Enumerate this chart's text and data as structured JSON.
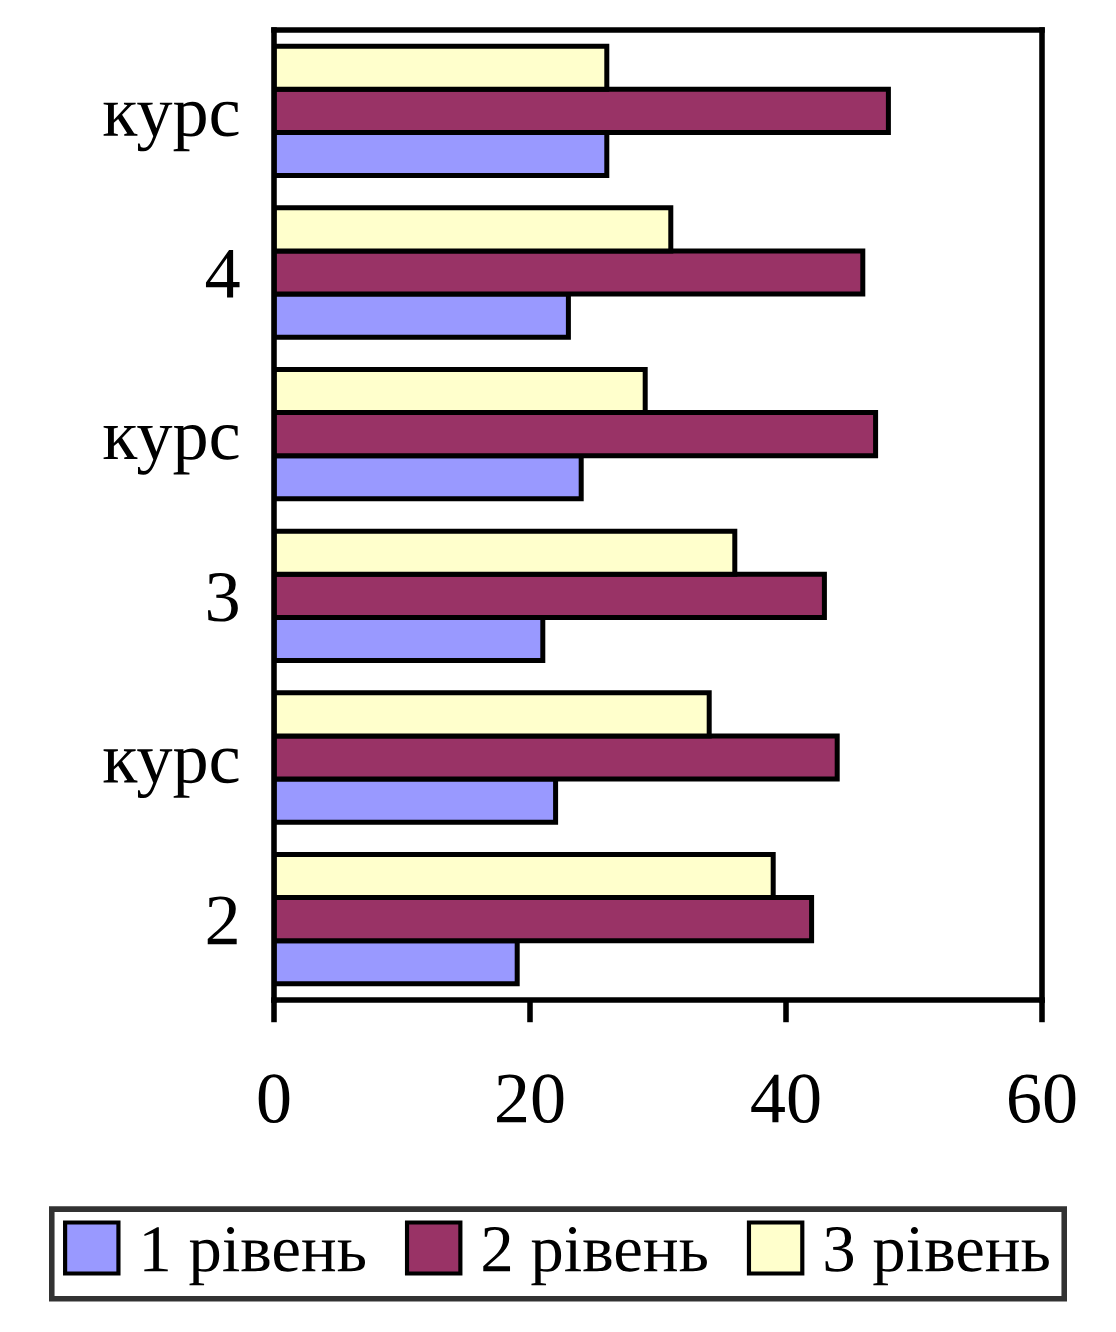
{
  "chart_data": {
    "type": "bar",
    "orientation": "horizontal",
    "categories": [
      "курс",
      "4",
      "курс",
      "3",
      "курс",
      "2"
    ],
    "series": [
      {
        "name": "1 рівень",
        "color": "#9999ff",
        "values": [
          26,
          23,
          24,
          21,
          22,
          19
        ]
      },
      {
        "name": "2 рівень",
        "color": "#993366",
        "values": [
          48,
          46,
          47,
          43,
          44,
          42
        ]
      },
      {
        "name": "3 рівень",
        "color": "#ffffcc",
        "values": [
          26,
          31,
          29,
          36,
          34,
          39
        ]
      }
    ],
    "xlim": [
      0,
      60
    ],
    "xticks": [
      0,
      20,
      40,
      60
    ],
    "grid": false,
    "legend": "bottom"
  }
}
